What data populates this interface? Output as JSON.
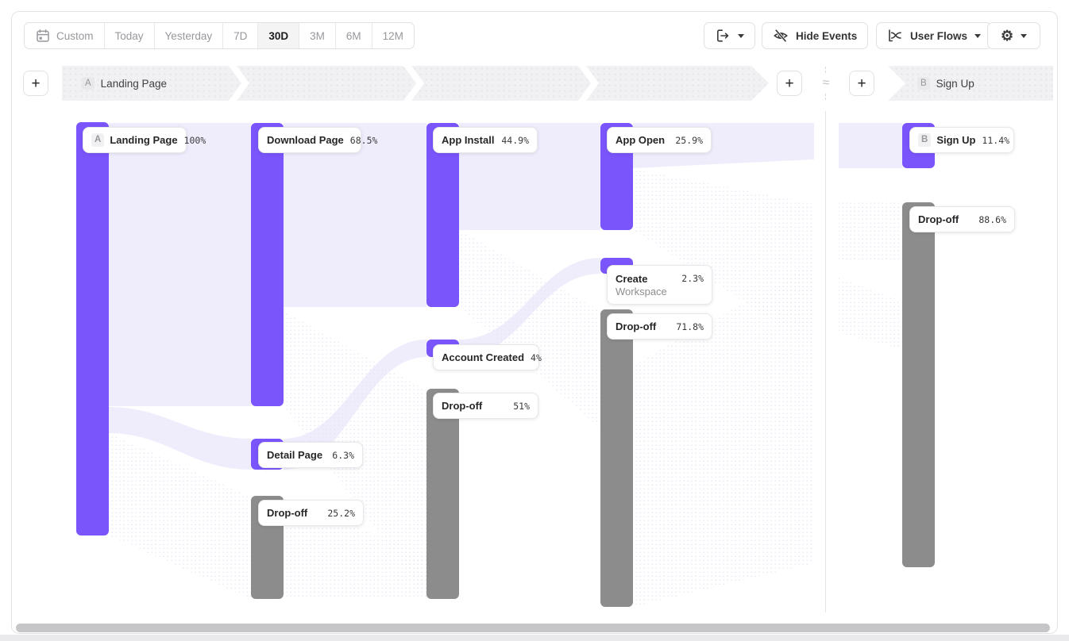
{
  "colors": {
    "accent_purple": "#7A55FC",
    "flow_light": "#EFEDFC",
    "dropoff_gray": "#8C8C8C",
    "band_gray": "#F1F1F3"
  },
  "toolbar": {
    "date_ranges": [
      {
        "label": "Custom",
        "icon": "calendar-icon",
        "active": false
      },
      {
        "label": "Today",
        "active": false
      },
      {
        "label": "Yesterday",
        "active": false
      },
      {
        "label": "7D",
        "active": false
      },
      {
        "label": "30D",
        "active": true
      },
      {
        "label": "3M",
        "active": false
      },
      {
        "label": "6M",
        "active": false
      },
      {
        "label": "12M",
        "active": false
      }
    ],
    "hide_events_label": "Hide Events",
    "user_flows_label": "User Flows"
  },
  "header": {
    "plus_label": "+",
    "approx_symbol": "≈",
    "flow_a": {
      "badge": "A",
      "name": "Landing Page"
    },
    "flow_b": {
      "badge": "B",
      "name": "Sign Up"
    }
  },
  "chart_data": {
    "type": "sankey",
    "unit": "%",
    "sections": [
      "A",
      "B"
    ],
    "nodes": [
      {
        "id": "landing",
        "section": "A",
        "col": 0,
        "badge": "A",
        "label": "Landing Page",
        "value_label": "100%",
        "value_pct": 100,
        "kind": "event"
      },
      {
        "id": "download",
        "section": "A",
        "col": 1,
        "label": "Download Page",
        "value_label": "68.5%",
        "value_pct": 68.5,
        "kind": "event"
      },
      {
        "id": "detail",
        "section": "A",
        "col": 1,
        "label": "Detail Page",
        "value_label": "6.3%",
        "value_pct": 6.3,
        "kind": "event"
      },
      {
        "id": "dropoff_1",
        "section": "A",
        "col": 1,
        "label": "Drop-off",
        "value_label": "25.2%",
        "value_pct": 25.2,
        "kind": "dropoff"
      },
      {
        "id": "install",
        "section": "A",
        "col": 2,
        "label": "App Install",
        "value_label": "44.9%",
        "value_pct": 44.9,
        "kind": "event"
      },
      {
        "id": "account",
        "section": "A",
        "col": 2,
        "label": "Account Created",
        "value_label": "4%",
        "value_pct": 4,
        "kind": "event"
      },
      {
        "id": "dropoff_2",
        "section": "A",
        "col": 2,
        "label": "Drop-off",
        "value_label": "51%",
        "value_pct": 51,
        "kind": "dropoff"
      },
      {
        "id": "open",
        "section": "A",
        "col": 3,
        "label": "App Open",
        "value_label": "25.9%",
        "value_pct": 25.9,
        "kind": "event"
      },
      {
        "id": "workspace",
        "section": "A",
        "col": 3,
        "label": "Create Workspace",
        "label_lines": [
          "Create",
          "Workspace"
        ],
        "value_label": "2.3%",
        "value_pct": 2.3,
        "kind": "event"
      },
      {
        "id": "dropoff_3",
        "section": "A",
        "col": 3,
        "label": "Drop-off",
        "value_label": "71.8%",
        "value_pct": 71.8,
        "kind": "dropoff"
      },
      {
        "id": "signup",
        "section": "B",
        "col": 4,
        "badge": "B",
        "label": "Sign Up",
        "value_label": "11.4%",
        "value_pct": 11.4,
        "kind": "event"
      },
      {
        "id": "dropoff_b",
        "section": "B",
        "col": 4,
        "label": "Drop-off",
        "value_label": "88.6%",
        "value_pct": 88.6,
        "kind": "dropoff"
      }
    ],
    "links": [
      {
        "source": "Landing Page",
        "target": "Download Page"
      },
      {
        "source": "Landing Page",
        "target": "Detail Page"
      },
      {
        "source": "Landing Page",
        "target": "Drop-off (col 2)"
      },
      {
        "source": "Download Page",
        "target": "App Install"
      },
      {
        "source": "Download Page",
        "target": "Drop-off (col 3)"
      },
      {
        "source": "Detail Page",
        "target": "Account Created"
      },
      {
        "source": "App Install",
        "target": "App Open"
      },
      {
        "source": "App Install",
        "target": "Drop-off (col 4)"
      },
      {
        "source": "Account Created",
        "target": "Create Workspace"
      },
      {
        "source": "App Open",
        "target": "Sign Up"
      },
      {
        "source": "App Open",
        "target": "Drop-off (B)"
      }
    ]
  }
}
